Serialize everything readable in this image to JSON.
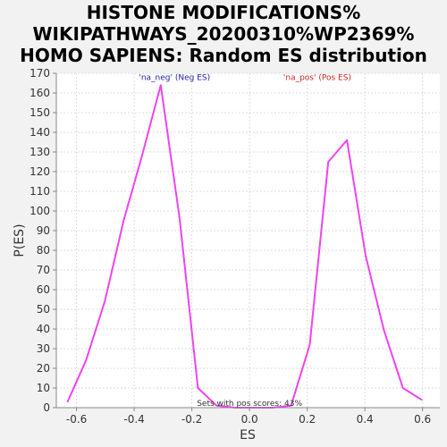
{
  "chart_data": {
    "type": "line",
    "title_lines": [
      "HISTONE MODIFICATIONS%",
      "WIKIPATHWAYS_20200310%WP2369%",
      "HOMO SAPIENS: Random ES distribution"
    ],
    "xlabel": "ES",
    "ylabel": "P(ES)",
    "xlim": [
      -0.67,
      0.66
    ],
    "ylim": [
      0,
      170
    ],
    "xticks": [
      -0.6,
      -0.4,
      -0.2,
      0.0,
      0.2,
      0.4,
      0.6
    ],
    "xtick_labels": [
      "-0.6",
      "-0.4",
      "-0.2",
      "0.0",
      "0.2",
      "0.4",
      "0.6"
    ],
    "yticks": [
      0,
      10,
      20,
      30,
      40,
      50,
      60,
      70,
      80,
      90,
      100,
      110,
      120,
      130,
      140,
      150,
      160,
      170
    ],
    "grid": true,
    "series": [
      {
        "color": "#ee44ee",
        "x": [
          -0.631,
          -0.567,
          -0.502,
          -0.437,
          -0.373,
          -0.308,
          -0.243,
          -0.179,
          -0.114,
          -0.05,
          0.015,
          0.079,
          0.144,
          0.209,
          0.273,
          0.338,
          0.403,
          0.467,
          0.532,
          0.597
        ],
        "y": [
          3,
          24,
          54,
          95,
          128,
          164,
          97,
          10,
          1,
          0,
          0,
          0,
          1,
          32,
          125,
          136,
          77,
          39,
          10,
          4
        ]
      }
    ],
    "annotations": [
      {
        "text": "'na_neg' (Neg ES)",
        "color": "#2222aa",
        "x": -0.26,
        "y": 166.5
      },
      {
        "text": "'na_pos' (Pos ES)",
        "color": "#cc2222",
        "x": 0.235,
        "y": 166.5
      },
      {
        "text": "Sets with pos scores: 43%",
        "color": "#333333",
        "x": 0.0,
        "y": 0.8
      }
    ]
  }
}
